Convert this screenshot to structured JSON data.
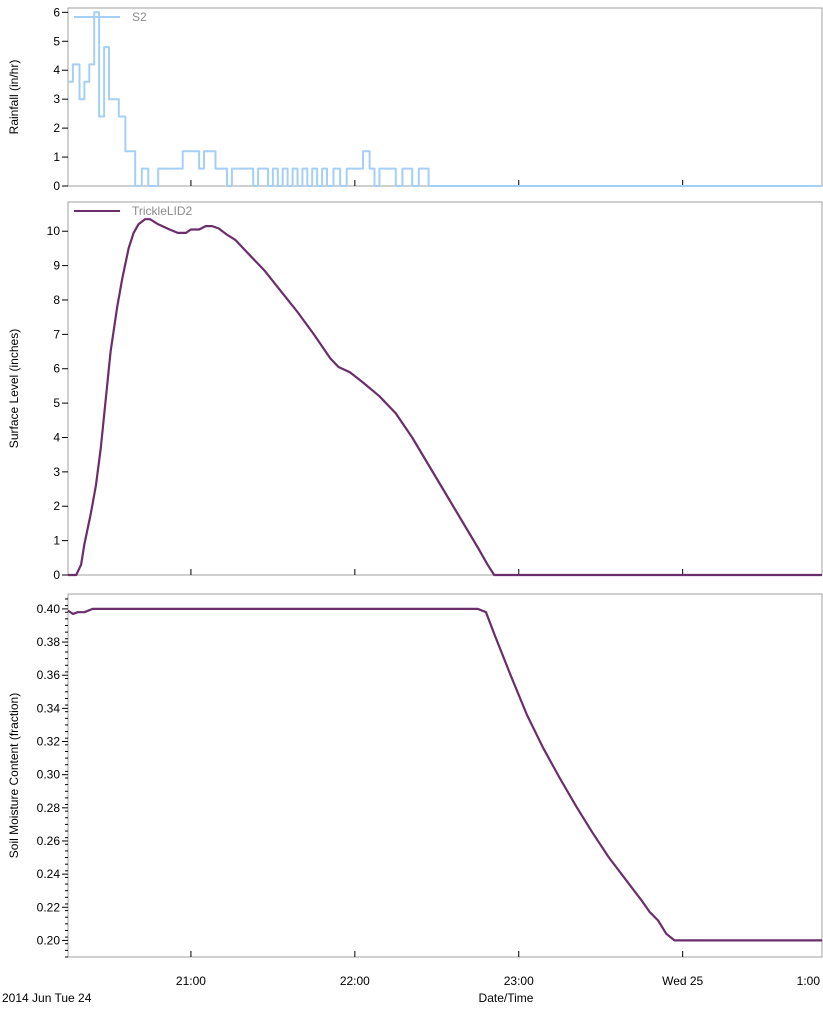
{
  "chart_data": [
    {
      "type": "line",
      "step": true,
      "ylabel": "Rainfall (in/hr)",
      "ylim": [
        0,
        6.15
      ],
      "yticks": [
        0,
        1,
        2,
        3,
        4,
        5,
        6
      ],
      "ytick_decimals": 0,
      "series": [
        {
          "name": "S2",
          "color": "#a6cff5",
          "points": [
            [
              0.0,
              3.6
            ],
            [
              0.03,
              4.2
            ],
            [
              0.07,
              3.0
            ],
            [
              0.1,
              3.6
            ],
            [
              0.13,
              4.2
            ],
            [
              0.16,
              6.0
            ],
            [
              0.19,
              2.4
            ],
            [
              0.22,
              4.8
            ],
            [
              0.25,
              3.0
            ],
            [
              0.31,
              2.4
            ],
            [
              0.35,
              1.2
            ],
            [
              0.41,
              0.0
            ],
            [
              0.45,
              0.6
            ],
            [
              0.49,
              0.0
            ],
            [
              0.55,
              0.6
            ],
            [
              0.7,
              1.2
            ],
            [
              0.8,
              0.6
            ],
            [
              0.83,
              1.2
            ],
            [
              0.9,
              0.6
            ],
            [
              0.97,
              0.0
            ],
            [
              1.0,
              0.6
            ],
            [
              1.13,
              0.0
            ],
            [
              1.16,
              0.6
            ],
            [
              1.22,
              0.0
            ],
            [
              1.25,
              0.6
            ],
            [
              1.28,
              0.0
            ],
            [
              1.31,
              0.6
            ],
            [
              1.34,
              0.0
            ],
            [
              1.37,
              0.6
            ],
            [
              1.4,
              0.0
            ],
            [
              1.43,
              0.6
            ],
            [
              1.46,
              0.0
            ],
            [
              1.49,
              0.6
            ],
            [
              1.52,
              0.0
            ],
            [
              1.55,
              0.6
            ],
            [
              1.58,
              0.0
            ],
            [
              1.62,
              0.6
            ],
            [
              1.66,
              0.0
            ],
            [
              1.7,
              0.6
            ],
            [
              1.8,
              1.2
            ],
            [
              1.84,
              0.6
            ],
            [
              1.87,
              0.0
            ],
            [
              1.9,
              0.6
            ],
            [
              2.0,
              0.0
            ],
            [
              2.04,
              0.6
            ],
            [
              2.1,
              0.0
            ],
            [
              2.14,
              0.6
            ],
            [
              2.2,
              0.0
            ],
            [
              4.6,
              0.0
            ]
          ]
        }
      ],
      "legend": "top-left"
    },
    {
      "type": "line",
      "ylabel": "Surface Level (inches)",
      "ylim": [
        0,
        10.85
      ],
      "yticks": [
        0,
        1,
        2,
        3,
        4,
        5,
        6,
        7,
        8,
        9,
        10
      ],
      "ytick_decimals": 0,
      "series": [
        {
          "name": "TrickleLID2",
          "color": "#6b2d6b",
          "points": [
            [
              0.0,
              0.0
            ],
            [
              0.05,
              0.0
            ],
            [
              0.08,
              0.3
            ],
            [
              0.1,
              0.9
            ],
            [
              0.14,
              1.8
            ],
            [
              0.17,
              2.6
            ],
            [
              0.2,
              3.7
            ],
            [
              0.23,
              5.1
            ],
            [
              0.26,
              6.5
            ],
            [
              0.3,
              7.8
            ],
            [
              0.33,
              8.6
            ],
            [
              0.37,
              9.5
            ],
            [
              0.4,
              9.95
            ],
            [
              0.43,
              10.2
            ],
            [
              0.47,
              10.35
            ],
            [
              0.5,
              10.35
            ],
            [
              0.55,
              10.2
            ],
            [
              0.62,
              10.05
            ],
            [
              0.67,
              9.95
            ],
            [
              0.72,
              9.95
            ],
            [
              0.75,
              10.05
            ],
            [
              0.8,
              10.05
            ],
            [
              0.84,
              10.15
            ],
            [
              0.88,
              10.15
            ],
            [
              0.92,
              10.08
            ],
            [
              0.97,
              9.9
            ],
            [
              1.02,
              9.75
            ],
            [
              1.1,
              9.35
            ],
            [
              1.2,
              8.85
            ],
            [
              1.3,
              8.25
            ],
            [
              1.4,
              7.65
            ],
            [
              1.5,
              7.0
            ],
            [
              1.6,
              6.3
            ],
            [
              1.65,
              6.05
            ],
            [
              1.72,
              5.9
            ],
            [
              1.8,
              5.6
            ],
            [
              1.9,
              5.2
            ],
            [
              2.0,
              4.7
            ],
            [
              2.1,
              4.0
            ],
            [
              2.2,
              3.2
            ],
            [
              2.3,
              2.4
            ],
            [
              2.4,
              1.6
            ],
            [
              2.5,
              0.8
            ],
            [
              2.56,
              0.3
            ],
            [
              2.6,
              0.0
            ],
            [
              4.6,
              0.0
            ]
          ]
        }
      ],
      "legend": "top-left"
    },
    {
      "type": "line",
      "ylabel": "Soil Moisture Content (fraction)",
      "ylim": [
        0.19,
        0.409
      ],
      "yticks": [
        0.2,
        0.22,
        0.24,
        0.26,
        0.28,
        0.3,
        0.32,
        0.34,
        0.36,
        0.38,
        0.4
      ],
      "ytick_decimals": 2,
      "minor_ticks": 5,
      "series": [
        {
          "name": "",
          "color": "#6b2d6b",
          "points": [
            [
              0.0,
              0.399
            ],
            [
              0.03,
              0.397
            ],
            [
              0.06,
              0.398
            ],
            [
              0.1,
              0.398
            ],
            [
              0.15,
              0.4
            ],
            [
              2.5,
              0.4
            ],
            [
              2.55,
              0.398
            ],
            [
              2.6,
              0.385
            ],
            [
              2.7,
              0.36
            ],
            [
              2.8,
              0.336
            ],
            [
              2.9,
              0.316
            ],
            [
              3.0,
              0.298
            ],
            [
              3.1,
              0.281
            ],
            [
              3.2,
              0.265
            ],
            [
              3.3,
              0.25
            ],
            [
              3.4,
              0.237
            ],
            [
              3.5,
              0.224
            ],
            [
              3.55,
              0.217
            ],
            [
              3.6,
              0.212
            ],
            [
              3.65,
              0.204
            ],
            [
              3.7,
              0.2
            ],
            [
              4.6,
              0.2
            ]
          ]
        }
      ]
    }
  ],
  "x_axis": {
    "xlabel": "Date/Time",
    "start_label": "2014 Jun Tue 24",
    "xlim": [
      0,
      4.6
    ],
    "ticks": [
      {
        "value": 0.75,
        "label": "21:00"
      },
      {
        "value": 1.75,
        "label": "22:00"
      },
      {
        "value": 2.75,
        "label": "23:00"
      },
      {
        "value": 3.75,
        "label": "Wed 25"
      },
      {
        "value": 4.75,
        "label": "1:00"
      }
    ]
  },
  "frame_color": "#a0a0a0"
}
